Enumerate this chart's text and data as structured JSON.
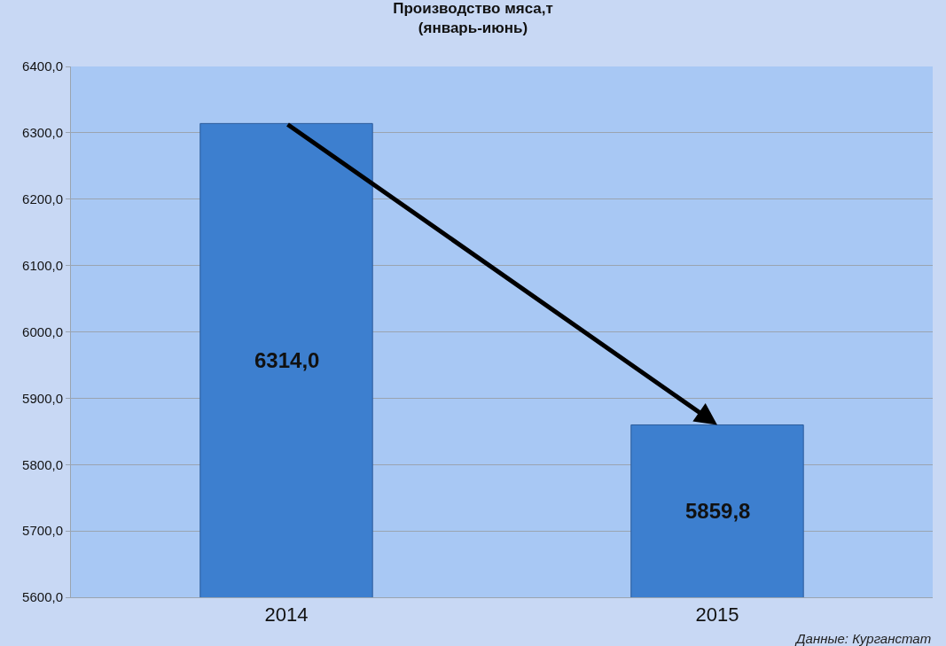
{
  "chart_data": {
    "type": "bar",
    "title": "Производство мяса,т",
    "subtitle": "(январь-июнь)",
    "categories": [
      "2014",
      "2015"
    ],
    "values": [
      6314.0,
      5859.8
    ],
    "value_labels": [
      "6314,0",
      "5859,8"
    ],
    "color": "#3d7fcf",
    "ylim": [
      5600,
      6400
    ],
    "yticks": [
      {
        "value": 5600,
        "label": "5600,0"
      },
      {
        "value": 5700,
        "label": "5700,0"
      },
      {
        "value": 5800,
        "label": "5800,0"
      },
      {
        "value": 5900,
        "label": "5900,0"
      },
      {
        "value": 6000,
        "label": "6000,0"
      },
      {
        "value": 6100,
        "label": "6100,0"
      },
      {
        "value": 6200,
        "label": "6200,0"
      },
      {
        "value": 6300,
        "label": "6300,0"
      },
      {
        "value": 6400,
        "label": "6400,0"
      }
    ],
    "grid": "y",
    "annotations": [
      "Данные: Курганстат"
    ]
  }
}
